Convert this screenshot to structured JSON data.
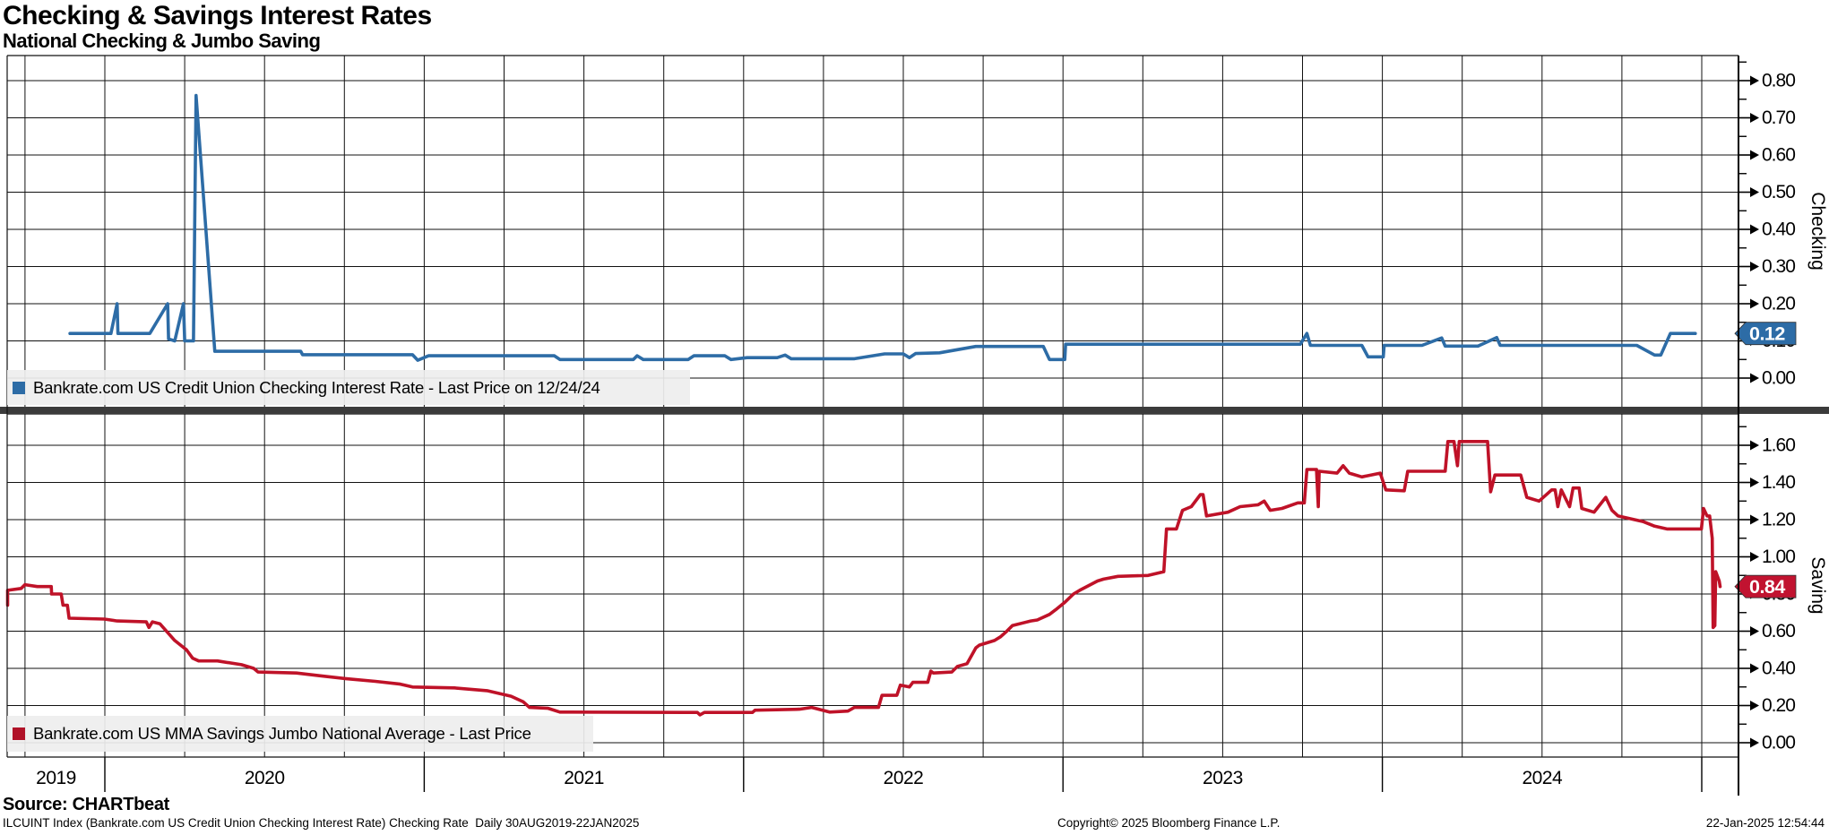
{
  "header": {
    "title": "Checking & Savings Interest Rates",
    "subtitle": "National Checking & Jumbo Saving"
  },
  "footer": {
    "source": "Source: CHARTbeat",
    "description": "ILCUINT Index (Bankrate.com US Credit Union Checking Interest Rate) Checking Rate  Daily 30AUG2019-22JAN2025",
    "copyright": "Copyright© 2025 Bloomberg Finance L.P.",
    "timestamp": "22-Jan-2025 12:54:44"
  },
  "chart_data": {
    "type": "line",
    "title": "Checking & Savings Interest Rates",
    "subtitle": "National Checking & Jumbo Saving",
    "x_axis": {
      "start_date": "2019-08-30",
      "end_date": "2025-01-22",
      "year_labels": [
        "2019",
        "2020",
        "2021",
        "2022",
        "2023",
        "2024"
      ],
      "gridlines": "quarterly",
      "grid": true
    },
    "panels": [
      {
        "id": "checking",
        "axis_label": "Checking",
        "legend": {
          "text": "Bankrate.com US Credit Union Checking Interest Rate - Last Price on 12/24/24",
          "marker_color": "#2d6ca6"
        },
        "line_color": "#2d6ca6",
        "ylim": [
          0.0,
          0.868
        ],
        "y_ticks": [
          0.0,
          0.1,
          0.2,
          0.3,
          0.4,
          0.5,
          0.6,
          0.7,
          0.8
        ],
        "minor_tick_step": 0.05,
        "legend_position": "bottom-left",
        "last_price": {
          "label": "0.12",
          "value": 0.12,
          "box_color": "#2d6ca6",
          "text_color": "#ffffff"
        },
        "series": {
          "name": "Bankrate.com US Credit Union Checking Interest Rate",
          "points": [
            [
              "2019-11-22",
              0.12
            ],
            [
              "2020-01-08",
              0.12
            ],
            [
              "2020-01-15",
              0.2
            ],
            [
              "2020-01-16",
              0.12
            ],
            [
              "2020-02-22",
              0.12
            ],
            [
              "2020-03-12",
              0.2
            ],
            [
              "2020-03-13",
              0.105
            ],
            [
              "2020-03-20",
              0.1
            ],
            [
              "2020-03-30",
              0.2
            ],
            [
              "2020-04-01",
              0.1
            ],
            [
              "2020-04-11",
              0.1
            ],
            [
              "2020-04-14",
              0.76
            ],
            [
              "2020-05-05",
              0.072
            ],
            [
              "2020-08-12",
              0.072
            ],
            [
              "2020-08-14",
              0.063
            ],
            [
              "2020-12-18",
              0.063
            ],
            [
              "2020-12-24",
              0.048
            ],
            [
              "2021-01-06",
              0.06
            ],
            [
              "2021-05-28",
              0.06
            ],
            [
              "2021-06-04",
              0.05
            ],
            [
              "2021-08-27",
              0.05
            ],
            [
              "2021-09-01",
              0.06
            ],
            [
              "2021-09-08",
              0.05
            ],
            [
              "2021-10-29",
              0.05
            ],
            [
              "2021-11-05",
              0.06
            ],
            [
              "2021-12-10",
              0.06
            ],
            [
              "2021-12-17",
              0.05
            ],
            [
              "2022-01-05",
              0.055
            ],
            [
              "2022-02-09",
              0.055
            ],
            [
              "2022-02-18",
              0.062
            ],
            [
              "2022-02-25",
              0.052
            ],
            [
              "2022-05-06",
              0.052
            ],
            [
              "2022-06-10",
              0.065
            ],
            [
              "2022-07-01",
              0.065
            ],
            [
              "2022-07-08",
              0.055
            ],
            [
              "2022-07-15",
              0.066
            ],
            [
              "2022-08-12",
              0.068
            ],
            [
              "2022-09-23",
              0.085
            ],
            [
              "2022-12-09",
              0.085
            ],
            [
              "2022-12-16",
              0.05
            ],
            [
              "2023-01-03",
              0.05
            ],
            [
              "2023-01-04",
              0.091
            ],
            [
              "2023-09-29",
              0.091
            ],
            [
              "2023-10-06",
              0.12
            ],
            [
              "2023-10-10",
              0.088
            ],
            [
              "2023-12-08",
              0.088
            ],
            [
              "2023-12-15",
              0.057
            ],
            [
              "2024-01-02",
              0.057
            ],
            [
              "2024-01-03",
              0.088
            ],
            [
              "2024-02-16",
              0.088
            ],
            [
              "2024-03-08",
              0.108
            ],
            [
              "2024-03-12",
              0.086
            ],
            [
              "2024-04-19",
              0.086
            ],
            [
              "2024-05-10",
              0.109
            ],
            [
              "2024-05-14",
              0.088
            ],
            [
              "2024-10-18",
              0.088
            ],
            [
              "2024-11-08",
              0.062
            ],
            [
              "2024-11-15",
              0.062
            ],
            [
              "2024-11-26",
              0.12
            ],
            [
              "2024-12-24",
              0.12
            ]
          ]
        }
      },
      {
        "id": "saving",
        "axis_label": "Saving",
        "legend": {
          "text": "Bankrate.com US MMA Savings Jumbo National Average - Last Price",
          "marker_color": "#b01228"
        },
        "line_color": "#bf1228",
        "ylim": [
          0.0,
          1.764
        ],
        "y_ticks": [
          0.0,
          0.2,
          0.4,
          0.6,
          0.8,
          1.0,
          1.2,
          1.4,
          1.6
        ],
        "minor_tick_step": 0.1,
        "legend_position": "bottom-left",
        "last_price": {
          "label": "0.84",
          "value": 0.84,
          "box_color": "#c11330",
          "text_color": "#ffffff"
        },
        "series": {
          "name": "Bankrate.com US MMA Savings Jumbo National Average",
          "points": [
            [
              "2019-08-30",
              0.74
            ],
            [
              "2019-09-03",
              0.82
            ],
            [
              "2019-09-27",
              0.83
            ],
            [
              "2019-10-01",
              0.85
            ],
            [
              "2019-10-15",
              0.84
            ],
            [
              "2019-10-31",
              0.84
            ],
            [
              "2019-11-01",
              0.8
            ],
            [
              "2019-11-12",
              0.8
            ],
            [
              "2019-11-14",
              0.74
            ],
            [
              "2019-11-19",
              0.74
            ],
            [
              "2019-11-21",
              0.67
            ],
            [
              "2019-12-31",
              0.665
            ],
            [
              "2020-01-15",
              0.655
            ],
            [
              "2020-02-18",
              0.65
            ],
            [
              "2020-02-21",
              0.62
            ],
            [
              "2020-02-25",
              0.65
            ],
            [
              "2020-03-03",
              0.64
            ],
            [
              "2020-03-20",
              0.55
            ],
            [
              "2020-04-03",
              0.5
            ],
            [
              "2020-04-10",
              0.455
            ],
            [
              "2020-04-17",
              0.44
            ],
            [
              "2020-05-08",
              0.44
            ],
            [
              "2020-06-05",
              0.42
            ],
            [
              "2020-06-19",
              0.4
            ],
            [
              "2020-06-24",
              0.38
            ],
            [
              "2020-08-07",
              0.375
            ],
            [
              "2020-09-04",
              0.36
            ],
            [
              "2020-10-02",
              0.345
            ],
            [
              "2020-11-06",
              0.33
            ],
            [
              "2020-12-04",
              0.315
            ],
            [
              "2020-12-18",
              0.3
            ],
            [
              "2021-02-05",
              0.295
            ],
            [
              "2021-03-12",
              0.28
            ],
            [
              "2021-04-09",
              0.25
            ],
            [
              "2021-04-23",
              0.22
            ],
            [
              "2021-04-30",
              0.19
            ],
            [
              "2021-05-21",
              0.185
            ],
            [
              "2021-06-04",
              0.165
            ],
            [
              "2021-11-09",
              0.163
            ],
            [
              "2021-11-12",
              0.15
            ],
            [
              "2021-11-17",
              0.163
            ],
            [
              "2022-01-11",
              0.163
            ],
            [
              "2022-01-14",
              0.175
            ],
            [
              "2022-03-04",
              0.18
            ],
            [
              "2022-03-18",
              0.19
            ],
            [
              "2022-04-08",
              0.165
            ],
            [
              "2022-04-29",
              0.17
            ],
            [
              "2022-05-06",
              0.19
            ],
            [
              "2022-06-03",
              0.19
            ],
            [
              "2022-06-07",
              0.255
            ],
            [
              "2022-06-24",
              0.255
            ],
            [
              "2022-06-28",
              0.31
            ],
            [
              "2022-07-08",
              0.3
            ],
            [
              "2022-07-12",
              0.325
            ],
            [
              "2022-07-29",
              0.325
            ],
            [
              "2022-08-02",
              0.385
            ],
            [
              "2022-08-05",
              0.375
            ],
            [
              "2022-08-26",
              0.38
            ],
            [
              "2022-09-02",
              0.41
            ],
            [
              "2022-09-13",
              0.425
            ],
            [
              "2022-09-16",
              0.45
            ],
            [
              "2022-09-23",
              0.51
            ],
            [
              "2022-09-27",
              0.525
            ],
            [
              "2022-10-14",
              0.55
            ],
            [
              "2022-10-21",
              0.57
            ],
            [
              "2022-10-28",
              0.6
            ],
            [
              "2022-11-04",
              0.63
            ],
            [
              "2022-11-25",
              0.655
            ],
            [
              "2022-12-02",
              0.66
            ],
            [
              "2022-12-16",
              0.69
            ],
            [
              "2022-12-23",
              0.715
            ],
            [
              "2023-01-03",
              0.755
            ],
            [
              "2023-01-13",
              0.8
            ],
            [
              "2023-01-20",
              0.82
            ],
            [
              "2023-02-10",
              0.87
            ],
            [
              "2023-02-17",
              0.88
            ],
            [
              "2023-03-03",
              0.895
            ],
            [
              "2023-04-07",
              0.9
            ],
            [
              "2023-04-25",
              0.92
            ],
            [
              "2023-04-28",
              1.15
            ],
            [
              "2023-05-09",
              1.15
            ],
            [
              "2023-05-16",
              1.25
            ],
            [
              "2023-05-26",
              1.27
            ],
            [
              "2023-06-06",
              1.335
            ],
            [
              "2023-06-09",
              1.335
            ],
            [
              "2023-06-13",
              1.22
            ],
            [
              "2023-07-07",
              1.24
            ],
            [
              "2023-07-21",
              1.27
            ],
            [
              "2023-08-11",
              1.28
            ],
            [
              "2023-08-18",
              1.3
            ],
            [
              "2023-08-25",
              1.25
            ],
            [
              "2023-09-08",
              1.26
            ],
            [
              "2023-09-26",
              1.29
            ],
            [
              "2023-10-03",
              1.29
            ],
            [
              "2023-10-06",
              1.47
            ],
            [
              "2023-10-17",
              1.47
            ],
            [
              "2023-10-19",
              1.27
            ],
            [
              "2023-10-20",
              1.46
            ],
            [
              "2023-11-10",
              1.45
            ],
            [
              "2023-11-17",
              1.49
            ],
            [
              "2023-11-24",
              1.45
            ],
            [
              "2023-12-08",
              1.43
            ],
            [
              "2023-12-29",
              1.45
            ],
            [
              "2024-01-05",
              1.36
            ],
            [
              "2024-01-26",
              1.355
            ],
            [
              "2024-01-30",
              1.46
            ],
            [
              "2024-03-12",
              1.46
            ],
            [
              "2024-03-15",
              1.62
            ],
            [
              "2024-03-22",
              1.62
            ],
            [
              "2024-03-26",
              1.49
            ],
            [
              "2024-03-28",
              1.62
            ],
            [
              "2024-04-30",
              1.62
            ],
            [
              "2024-05-03",
              1.35
            ],
            [
              "2024-05-08",
              1.44
            ],
            [
              "2024-06-07",
              1.44
            ],
            [
              "2024-06-14",
              1.32
            ],
            [
              "2024-06-28",
              1.3
            ],
            [
              "2024-07-12",
              1.36
            ],
            [
              "2024-07-16",
              1.36
            ],
            [
              "2024-07-19",
              1.27
            ],
            [
              "2024-07-23",
              1.36
            ],
            [
              "2024-08-02",
              1.27
            ],
            [
              "2024-08-06",
              1.37
            ],
            [
              "2024-08-13",
              1.37
            ],
            [
              "2024-08-16",
              1.26
            ],
            [
              "2024-08-30",
              1.24
            ],
            [
              "2024-09-13",
              1.32
            ],
            [
              "2024-09-20",
              1.25
            ],
            [
              "2024-09-27",
              1.22
            ],
            [
              "2024-10-25",
              1.19
            ],
            [
              "2024-11-08",
              1.165
            ],
            [
              "2024-11-22",
              1.15
            ],
            [
              "2024-12-31",
              1.15
            ],
            [
              "2025-01-03",
              1.26
            ],
            [
              "2025-01-07",
              1.22
            ],
            [
              "2025-01-10",
              1.22
            ],
            [
              "2025-01-13",
              1.1
            ],
            [
              "2025-01-14",
              0.62
            ],
            [
              "2025-01-16",
              0.63
            ],
            [
              "2025-01-17",
              0.92
            ],
            [
              "2025-01-21",
              0.87
            ],
            [
              "2025-01-22",
              0.84
            ]
          ]
        }
      }
    ]
  }
}
